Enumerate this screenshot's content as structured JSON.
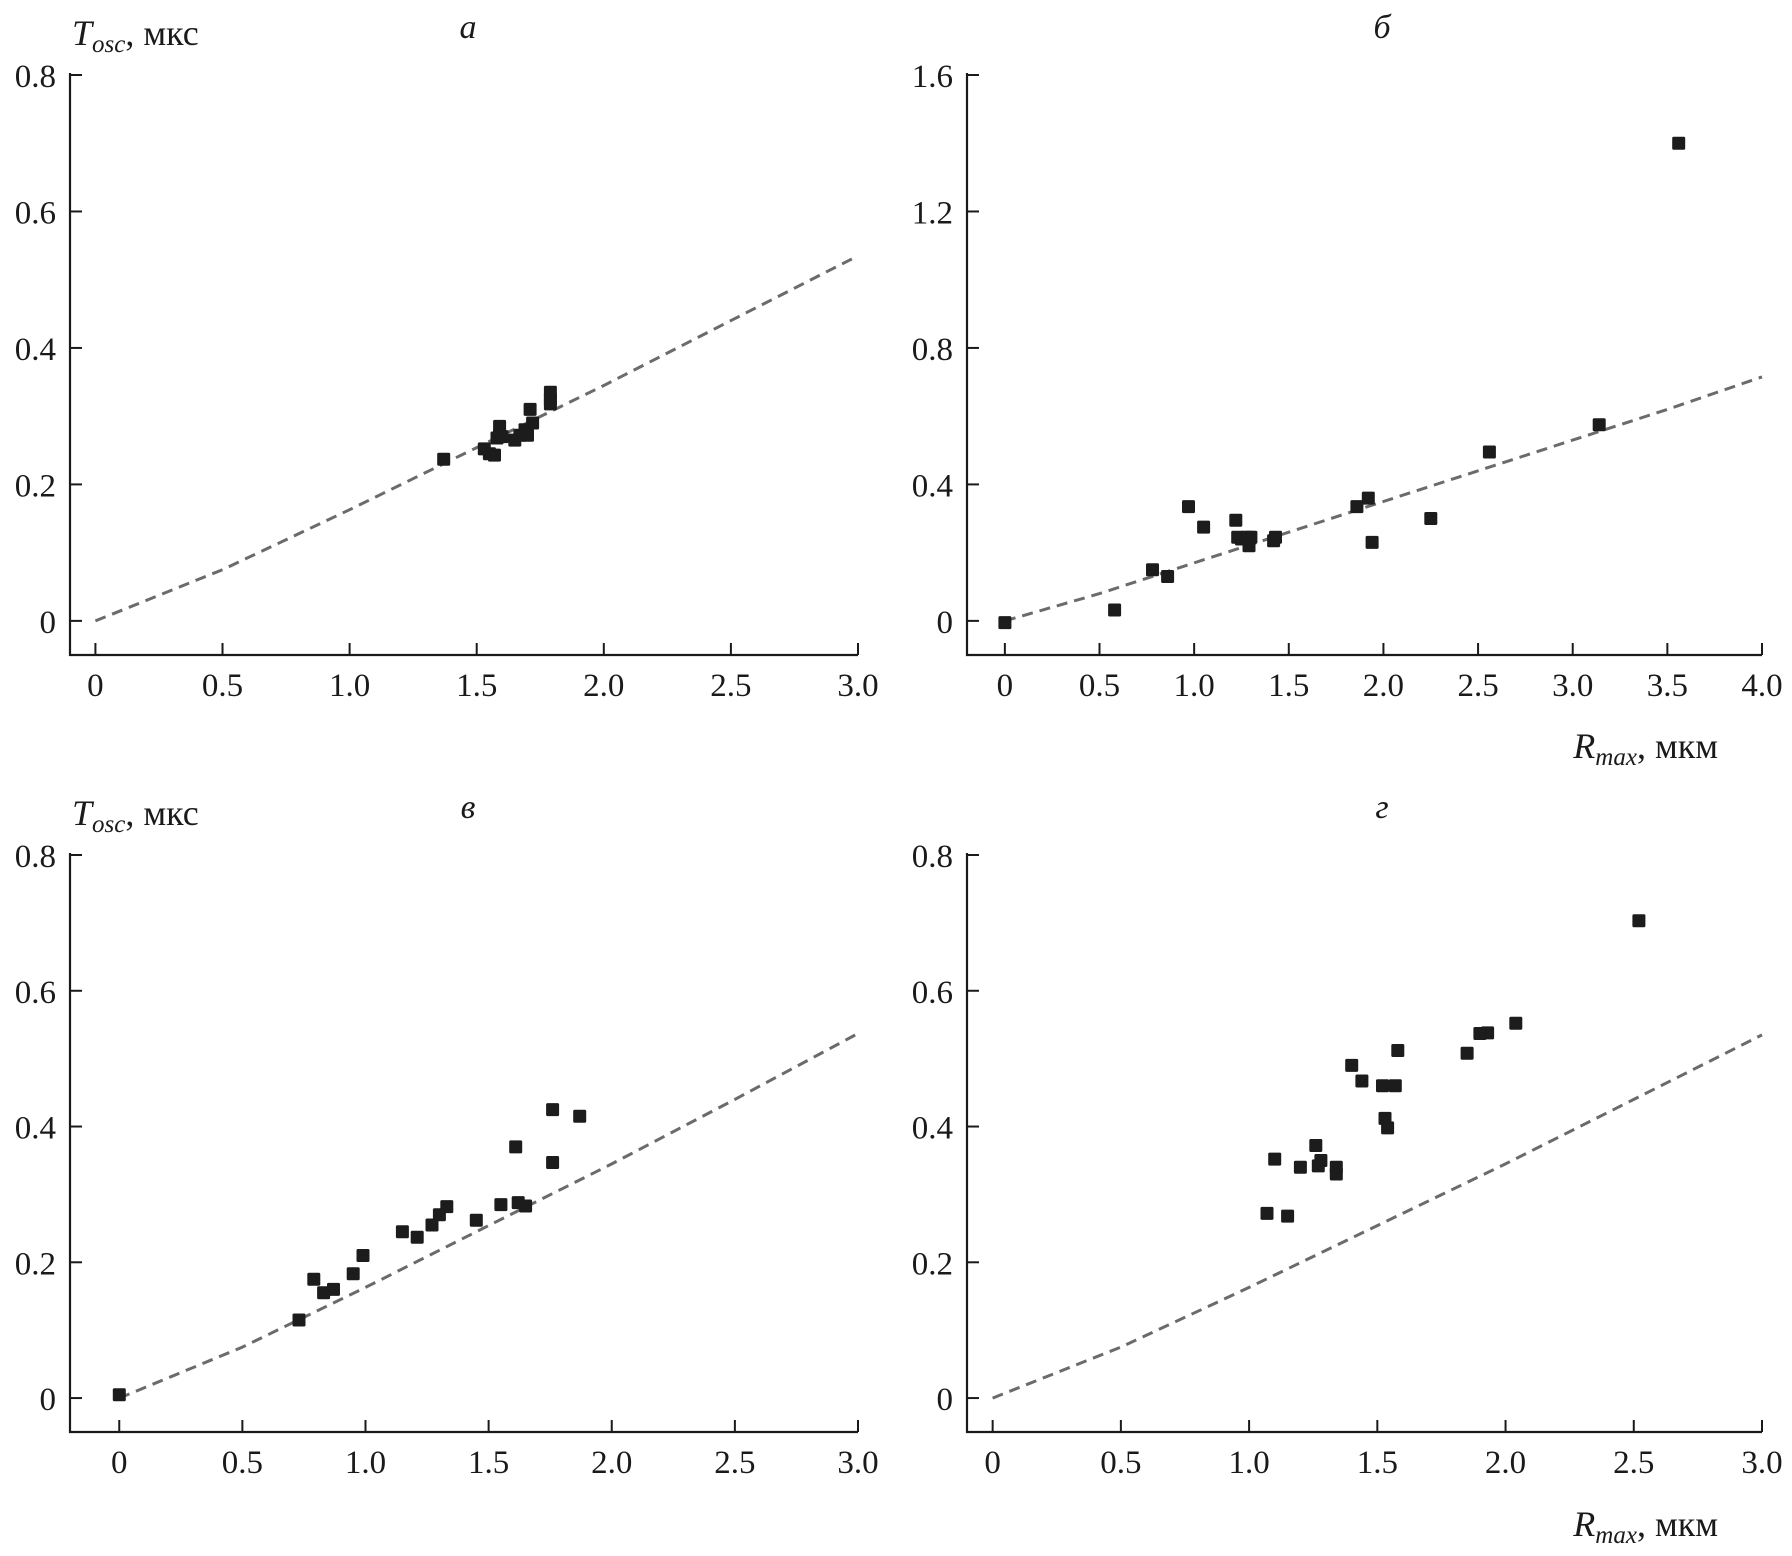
{
  "chart_data": [
    {
      "type": "scatter",
      "panel_label": "а",
      "ylabel": {
        "symbol": "T",
        "subscript": "osc",
        "unit": ", мкс"
      },
      "xlabel": null,
      "xlim": [
        -0.1,
        3.0
      ],
      "ylim": [
        -0.05,
        0.8
      ],
      "xticks": [
        0,
        0.5,
        1.0,
        1.5,
        2.0,
        2.5,
        3.0
      ],
      "xtick_labels": [
        "0",
        "0.5",
        "1.0",
        "1.5",
        "2.0",
        "2.5",
        "3.0"
      ],
      "yticks": [
        0,
        0.2,
        0.4,
        0.6,
        0.8
      ],
      "ytick_labels": [
        "0",
        "0.2",
        "0.4",
        "0.6",
        "0.8"
      ],
      "fit_line": {
        "style": "dashed",
        "x": [
          0,
          0.5,
          1.0,
          1.5,
          2.0,
          2.5,
          3.0
        ],
        "y": [
          0,
          0.075,
          0.163,
          0.254,
          0.345,
          0.44,
          0.535
        ]
      },
      "points": {
        "x": [
          1.37,
          1.53,
          1.55,
          1.57,
          1.58,
          1.59,
          1.59,
          1.6,
          1.65,
          1.67,
          1.69,
          1.7,
          1.71,
          1.72,
          1.79,
          1.79,
          1.79
        ],
        "y": [
          0.237,
          0.252,
          0.245,
          0.243,
          0.268,
          0.272,
          0.285,
          0.27,
          0.265,
          0.272,
          0.28,
          0.272,
          0.31,
          0.29,
          0.335,
          0.325,
          0.318
        ]
      }
    },
    {
      "type": "scatter",
      "panel_label": "б",
      "ylabel": null,
      "xlabel": {
        "symbol": "R",
        "subscript": "max",
        "unit": ", мкм"
      },
      "xlim": [
        -0.2,
        4.0
      ],
      "ylim": [
        -0.1,
        1.6
      ],
      "xticks": [
        0,
        0.5,
        1.0,
        1.5,
        2.0,
        2.5,
        3.0,
        3.5,
        4.0
      ],
      "xtick_labels": [
        "0",
        "0.5",
        "1.0",
        "1.5",
        "2.0",
        "2.5",
        "3.0",
        "3.5",
        "4.0"
      ],
      "yticks": [
        0,
        0.4,
        0.8,
        1.2,
        1.6
      ],
      "ytick_labels": [
        "0",
        "0.4",
        "0.8",
        "1.2",
        "1.6"
      ],
      "fit_line": {
        "style": "dashed",
        "x": [
          0,
          0.5,
          1.0,
          1.5,
          2.0,
          2.5,
          3.0,
          3.5,
          4.0
        ],
        "y": [
          0,
          0.08,
          0.17,
          0.26,
          0.35,
          0.44,
          0.53,
          0.62,
          0.715
        ]
      },
      "points": {
        "x": [
          0,
          0.58,
          0.78,
          0.86,
          0.97,
          1.05,
          1.22,
          1.23,
          1.25,
          1.28,
          1.29,
          1.3,
          1.42,
          1.43,
          1.86,
          1.92,
          1.94,
          2.25,
          2.56,
          3.14,
          3.56
        ],
        "y": [
          -0.005,
          0.032,
          0.15,
          0.13,
          0.335,
          0.275,
          0.295,
          0.245,
          0.24,
          0.245,
          0.22,
          0.245,
          0.235,
          0.245,
          0.335,
          0.36,
          0.23,
          0.3,
          0.495,
          0.575,
          1.4
        ]
      }
    },
    {
      "type": "scatter",
      "panel_label": "в",
      "ylabel": {
        "symbol": "T",
        "subscript": "osc",
        "unit": ", мкс"
      },
      "xlabel": null,
      "xlim": [
        -0.2,
        3.0
      ],
      "ylim": [
        -0.05,
        0.8
      ],
      "xticks": [
        0,
        0.5,
        1.0,
        1.5,
        2.0,
        2.5,
        3.0
      ],
      "xtick_labels": [
        "0",
        "0.5",
        "1.0",
        "1.5",
        "2.0",
        "2.5",
        "3.0"
      ],
      "yticks": [
        0,
        0.2,
        0.4,
        0.6,
        0.8
      ],
      "ytick_labels": [
        "0",
        "0.2",
        "0.4",
        "0.6",
        "0.8"
      ],
      "fit_line": {
        "style": "dashed",
        "x": [
          0,
          0.5,
          1.0,
          1.5,
          2.0,
          2.5,
          3.0
        ],
        "y": [
          0,
          0.075,
          0.163,
          0.254,
          0.345,
          0.44,
          0.537
        ]
      },
      "points": {
        "x": [
          0,
          0.73,
          0.79,
          0.83,
          0.87,
          0.95,
          0.99,
          1.15,
          1.21,
          1.27,
          1.3,
          1.33,
          1.45,
          1.55,
          1.61,
          1.62,
          1.65,
          1.76,
          1.76,
          1.87
        ],
        "y": [
          0.005,
          0.115,
          0.175,
          0.155,
          0.16,
          0.183,
          0.21,
          0.245,
          0.237,
          0.255,
          0.27,
          0.282,
          0.262,
          0.285,
          0.37,
          0.288,
          0.283,
          0.425,
          0.347,
          0.415
        ]
      }
    },
    {
      "type": "scatter",
      "panel_label": "г",
      "ylabel": null,
      "xlabel": {
        "symbol": "R",
        "subscript": "max",
        "unit": ", мкм"
      },
      "xlim": [
        -0.1,
        3.0
      ],
      "ylim": [
        -0.05,
        0.8
      ],
      "xticks": [
        0,
        0.5,
        1.0,
        1.5,
        2.0,
        2.5,
        3.0
      ],
      "xtick_labels": [
        "0",
        "0.5",
        "1.0",
        "1.5",
        "2.0",
        "2.5",
        "3.0"
      ],
      "yticks": [
        0,
        0.2,
        0.4,
        0.6,
        0.8
      ],
      "ytick_labels": [
        "0",
        "0.2",
        "0.4",
        "0.6",
        "0.8"
      ],
      "fit_line": {
        "style": "dashed",
        "x": [
          0,
          0.5,
          1.0,
          1.5,
          2.0,
          2.5,
          3.0
        ],
        "y": [
          0,
          0.075,
          0.163,
          0.254,
          0.345,
          0.44,
          0.535
        ]
      },
      "points": {
        "x": [
          1.07,
          1.1,
          1.15,
          1.2,
          1.26,
          1.27,
          1.28,
          1.34,
          1.34,
          1.4,
          1.44,
          1.52,
          1.53,
          1.54,
          1.57,
          1.58,
          1.85,
          1.9,
          1.93,
          2.04,
          2.52
        ],
        "y": [
          0.272,
          0.352,
          0.268,
          0.34,
          0.372,
          0.342,
          0.35,
          0.34,
          0.33,
          0.49,
          0.467,
          0.46,
          0.412,
          0.398,
          0.46,
          0.512,
          0.508,
          0.537,
          0.538,
          0.552,
          0.703
        ]
      }
    }
  ]
}
